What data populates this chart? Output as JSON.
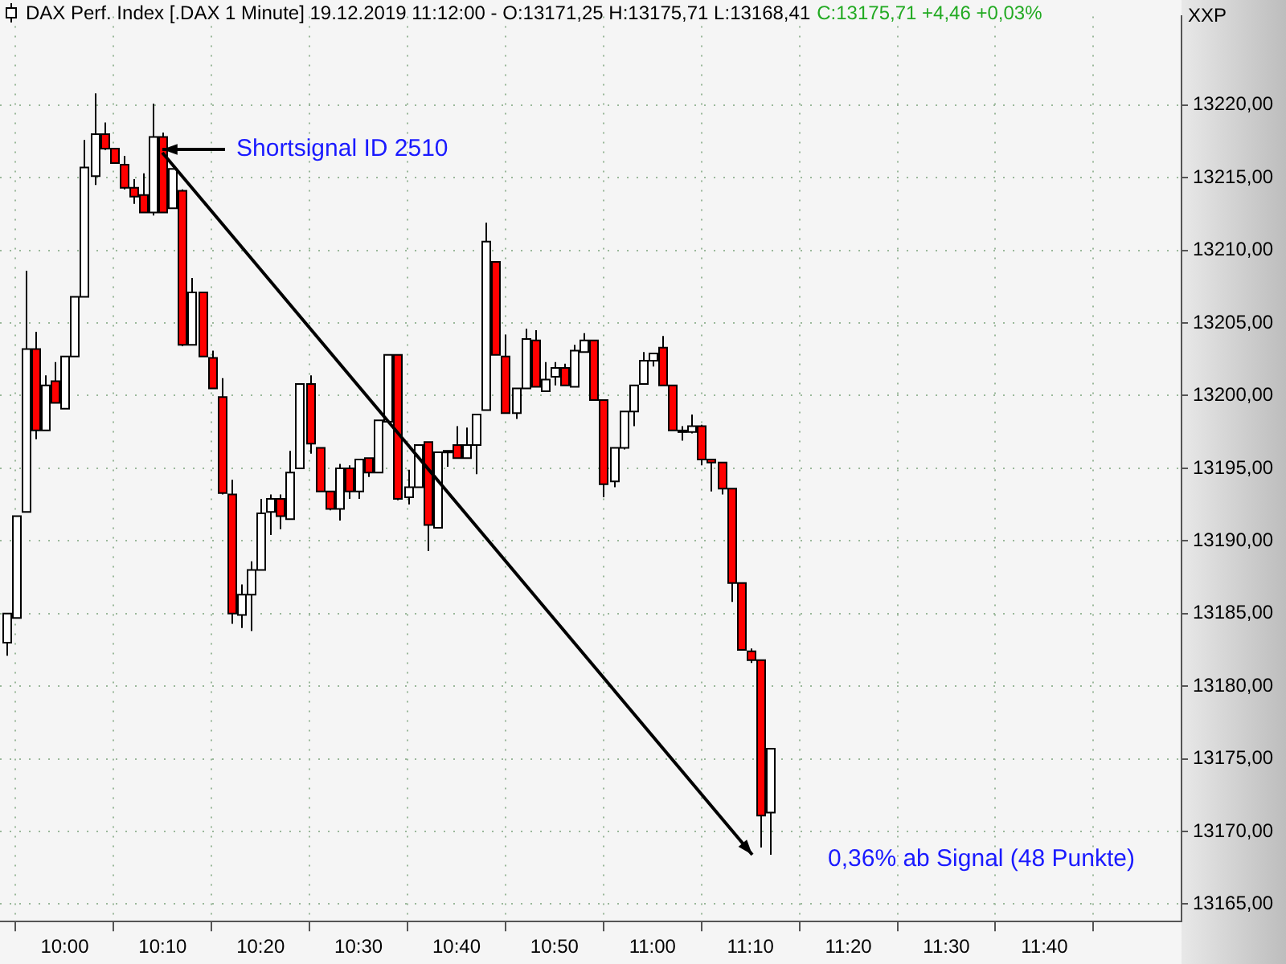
{
  "chart_data": {
    "type": "candlestick",
    "title": "DAX Perf. Index [.DAX  1 Minute] 19.12.2019 11:12:00 - O:13171,25 H:13175,71 L:13168,41",
    "subtitle": "C:13175,71 +4,46 +0,03%",
    "ylabel": "XXP",
    "annotations": [
      "Shortsignal ID 2510",
      "0,36% ab Signal (48 Punkte)"
    ],
    "x": [
      9.9,
      9.9167,
      9.9333,
      9.95,
      9.9667,
      9.9833,
      10,
      10.0167,
      10.0333,
      10.05,
      10.0667,
      10.0833,
      10.1,
      10.1167,
      10.1333,
      10.15,
      10.1667,
      10.1833,
      10.2,
      10.2167,
      10.2333,
      10.25,
      10.2667,
      10.2833,
      10.3,
      10.3167,
      10.3333,
      10.35,
      10.3667,
      10.3833,
      10.4,
      10.4167,
      10.4333,
      10.45,
      10.4667,
      10.4833,
      10.5,
      10.5167,
      10.5333,
      10.55,
      10.5667,
      10.5833,
      10.6,
      10.6167,
      10.6333,
      10.65,
      10.6667,
      10.6833,
      10.7,
      10.7167,
      10.7333,
      10.75,
      10.7667,
      10.7833,
      10.8,
      10.8167,
      10.8333,
      10.85,
      10.8667,
      10.8833,
      10.9,
      10.9167,
      10.9333,
      10.95,
      10.9667,
      10.9833,
      11,
      11.0167,
      11.0333,
      11.05,
      11.0667,
      11.0833,
      11.1,
      11.1167,
      11.1333,
      11.15,
      11.1667,
      11.1833,
      11.2
    ],
    "ohlc": [
      [
        13183.0,
        13185.0,
        13182.1,
        13185.0
      ],
      [
        13184.7,
        13191.7,
        13184.7,
        13191.7
      ],
      [
        13192.0,
        13208.6,
        13192.0,
        13203.2
      ],
      [
        13203.2,
        13204.4,
        13197.0,
        13197.6
      ],
      [
        13197.6,
        13201.4,
        13197.6,
        13200.7
      ],
      [
        13201.0,
        13202.3,
        13199.5,
        13199.5
      ],
      [
        13199.1,
        13202.7,
        13199.1,
        13202.7
      ],
      [
        13202.7,
        13206.8,
        13202.7,
        13206.8
      ],
      [
        13206.8,
        13217.6,
        13206.8,
        13215.7
      ],
      [
        13215.1,
        13220.8,
        13214.5,
        13218.0
      ],
      [
        13218.0,
        13218.8,
        13216.9,
        13217.0
      ],
      [
        13217.0,
        13217.0,
        13216.0,
        13216.0
      ],
      [
        13215.9,
        13216.5,
        13214.2,
        13214.3
      ],
      [
        13214.3,
        13214.9,
        13213.2,
        13213.7
      ],
      [
        13213.8,
        13215.3,
        13212.6,
        13212.6
      ],
      [
        13212.6,
        13220.1,
        13212.4,
        13217.8
      ],
      [
        13217.8,
        13218.1,
        13212.6,
        13212.6
      ],
      [
        13212.9,
        13215.6,
        13212.9,
        13215.6
      ],
      [
        13214.1,
        13214.2,
        13203.4,
        13203.5
      ],
      [
        13203.5,
        13208.1,
        13203.5,
        13207.1
      ],
      [
        13207.1,
        13207.1,
        13202.7,
        13202.7
      ],
      [
        13202.6,
        13203.1,
        13200.5,
        13200.5
      ],
      [
        13199.9,
        13201.2,
        13193.2,
        13193.3
      ],
      [
        13193.2,
        13194.2,
        13184.3,
        13185.0
      ],
      [
        13184.9,
        13187.0,
        13184.0,
        13186.3
      ],
      [
        13186.3,
        13188.6,
        13183.8,
        13188.0
      ],
      [
        13188.0,
        13192.9,
        13188.0,
        13191.9
      ],
      [
        13192.0,
        13193.2,
        13190.4,
        13192.9
      ],
      [
        13192.9,
        13193.2,
        13190.8,
        13191.7
      ],
      [
        13191.5,
        13196.2,
        13191.5,
        13194.7
      ],
      [
        13195.0,
        13200.8,
        13195.0,
        13200.8
      ],
      [
        13200.8,
        13201.4,
        13196.0,
        13196.7
      ],
      [
        13196.4,
        13196.4,
        13193.4,
        13193.4
      ],
      [
        13193.4,
        13193.4,
        13192.1,
        13192.2
      ],
      [
        13192.2,
        13195.3,
        13191.4,
        13195.0
      ],
      [
        13195.0,
        13195.2,
        13192.9,
        13193.4
      ],
      [
        13193.4,
        13195.6,
        13192.9,
        13195.6
      ],
      [
        13195.7,
        13195.7,
        13194.4,
        13194.7
      ],
      [
        13194.7,
        13198.3,
        13194.7,
        13198.3
      ],
      [
        13198.2,
        13202.8,
        13198.2,
        13202.8
      ],
      [
        13202.8,
        13202.8,
        13192.8,
        13192.9
      ],
      [
        13193.0,
        13194.9,
        13192.5,
        13193.7
      ],
      [
        13193.7,
        13196.6,
        13193.7,
        13196.6
      ],
      [
        13196.8,
        13196.8,
        13189.3,
        13191.1
      ],
      [
        13190.9,
        13196.1,
        13190.9,
        13196.1
      ],
      [
        13196.1,
        13196.2,
        13195.1,
        13196.2
      ],
      [
        13196.6,
        13197.9,
        13195.7,
        13195.7
      ],
      [
        13195.7,
        13197.8,
        13195.7,
        13196.6
      ],
      [
        13196.6,
        13198.7,
        13194.6,
        13198.7
      ],
      [
        13199.0,
        13211.9,
        13199.0,
        13210.6
      ],
      [
        13209.2,
        13209.2,
        13202.8,
        13202.8
      ],
      [
        13202.7,
        13204.2,
        13198.8,
        13198.8
      ],
      [
        13198.8,
        13200.5,
        13198.4,
        13200.5
      ],
      [
        13200.5,
        13204.6,
        13200.5,
        13203.9
      ],
      [
        13203.8,
        13204.5,
        13200.6,
        13200.6
      ],
      [
        13200.3,
        13202.3,
        13200.3,
        13201.1
      ],
      [
        13201.3,
        13202.3,
        13200.7,
        13201.9
      ],
      [
        13201.9,
        13202.2,
        13200.7,
        13200.7
      ],
      [
        13200.6,
        13203.5,
        13200.6,
        13203.1
      ],
      [
        13203.0,
        13204.3,
        13203.0,
        13203.8
      ],
      [
        13203.8,
        13203.8,
        13199.7,
        13199.7
      ],
      [
        13199.7,
        13199.7,
        13193.0,
        13193.9
      ],
      [
        13194.1,
        13196.4,
        13193.7,
        13196.4
      ],
      [
        13196.4,
        13198.9,
        13196.3,
        13198.9
      ],
      [
        13198.9,
        13200.7,
        13197.9,
        13200.7
      ],
      [
        13200.8,
        13203.0,
        13200.8,
        13202.4
      ],
      [
        13202.4,
        13202.9,
        13202.0,
        13202.9
      ],
      [
        13203.3,
        13204.1,
        13200.7,
        13200.7
      ],
      [
        13200.7,
        13200.7,
        13197.6,
        13197.6
      ],
      [
        13197.6,
        13197.9,
        13196.9,
        13197.5
      ],
      [
        13197.5,
        13198.7,
        13197.4,
        13197.9
      ],
      [
        13197.9,
        13198.0,
        13195.2,
        13195.6
      ],
      [
        13195.6,
        13195.6,
        13193.4,
        13195.4
      ],
      [
        13195.4,
        13195.4,
        13193.2,
        13193.6
      ],
      [
        13193.6,
        13193.6,
        13185.8,
        13187.1
      ],
      [
        13187.1,
        13187.1,
        13182.5,
        13182.5
      ],
      [
        13182.4,
        13182.6,
        13181.6,
        13181.8
      ],
      [
        13181.8,
        13181.8,
        13168.9,
        13171.1
      ],
      [
        13171.3,
        13175.7,
        13168.4,
        13175.7
      ]
    ],
    "xlim": [
      9.89,
      11.9
    ],
    "xticks": [
      {
        "value": 10,
        "label": "10:00"
      },
      {
        "value": 10.1667,
        "label": "10:10"
      },
      {
        "value": 10.3333,
        "label": "10:20"
      },
      {
        "value": 10.5,
        "label": "10:30"
      },
      {
        "value": 10.6667,
        "label": "10:40"
      },
      {
        "value": 10.8333,
        "label": "10:50"
      },
      {
        "value": 11,
        "label": "11:00"
      },
      {
        "value": 11.1667,
        "label": "11:10"
      },
      {
        "value": 11.3333,
        "label": "11:20"
      },
      {
        "value": 11.5,
        "label": "11:30"
      },
      {
        "value": 11.6667,
        "label": "11:40"
      }
    ],
    "ylim": [
      13163.8,
      13226.1
    ],
    "yticks": [
      {
        "value": 13165,
        "label": "13165,00"
      },
      {
        "value": 13170,
        "label": "13170,00"
      },
      {
        "value": 13175,
        "label": "13175,00"
      },
      {
        "value": 13180,
        "label": "13180,00"
      },
      {
        "value": 13185,
        "label": "13185,00"
      },
      {
        "value": 13190,
        "label": "13190,00"
      },
      {
        "value": 13195,
        "label": "13195,00"
      },
      {
        "value": 13200,
        "label": "13200,00"
      },
      {
        "value": 13205,
        "label": "13205,00"
      },
      {
        "value": 13210,
        "label": "13210,00"
      },
      {
        "value": 13215,
        "label": "13215,00"
      },
      {
        "value": 13220,
        "label": "13220,00"
      }
    ],
    "grid": true
  }
}
